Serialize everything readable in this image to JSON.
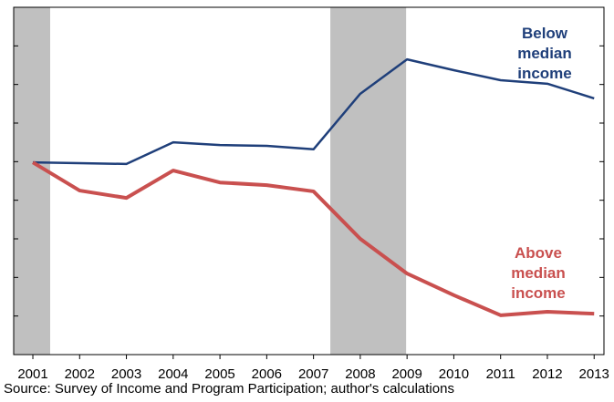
{
  "chart_data": {
    "type": "line",
    "x": [
      2001,
      2002,
      2003,
      2004,
      2005,
      2006,
      2007,
      2008,
      2009,
      2010,
      2011,
      2012,
      2013
    ],
    "xlim": [
      2000.59,
      2013.21
    ],
    "xticks": [
      2001,
      2002,
      2003,
      2004,
      2005,
      2006,
      2007,
      2008,
      2009,
      2010,
      2011,
      2012,
      2013
    ],
    "ylim": [
      0,
      9
    ],
    "yticks": [
      1,
      2,
      3,
      4,
      5,
      6,
      7,
      8,
      9
    ],
    "recessions": [
      [
        2000.59,
        2001.37
      ],
      [
        2007.36,
        2008.98
      ]
    ],
    "recession_color": "#c0c0c0",
    "series": [
      {
        "name": "Below\nmedian income",
        "color": "#1f3f7a",
        "width": 2.5,
        "values": [
          4.98,
          4.96,
          4.94,
          5.5,
          5.43,
          5.41,
          5.32,
          6.76,
          7.65,
          7.37,
          7.11,
          7.02,
          6.64
        ]
      },
      {
        "name": "Above\nmedian income",
        "color": "#c9504f",
        "width": 4,
        "values": [
          4.98,
          4.25,
          4.06,
          4.77,
          4.46,
          4.39,
          4.23,
          3.0,
          2.1,
          1.54,
          1.02,
          1.11,
          1.06
        ]
      }
    ],
    "source": "Source: Survey of Income and Program Participation; author's calculations"
  }
}
